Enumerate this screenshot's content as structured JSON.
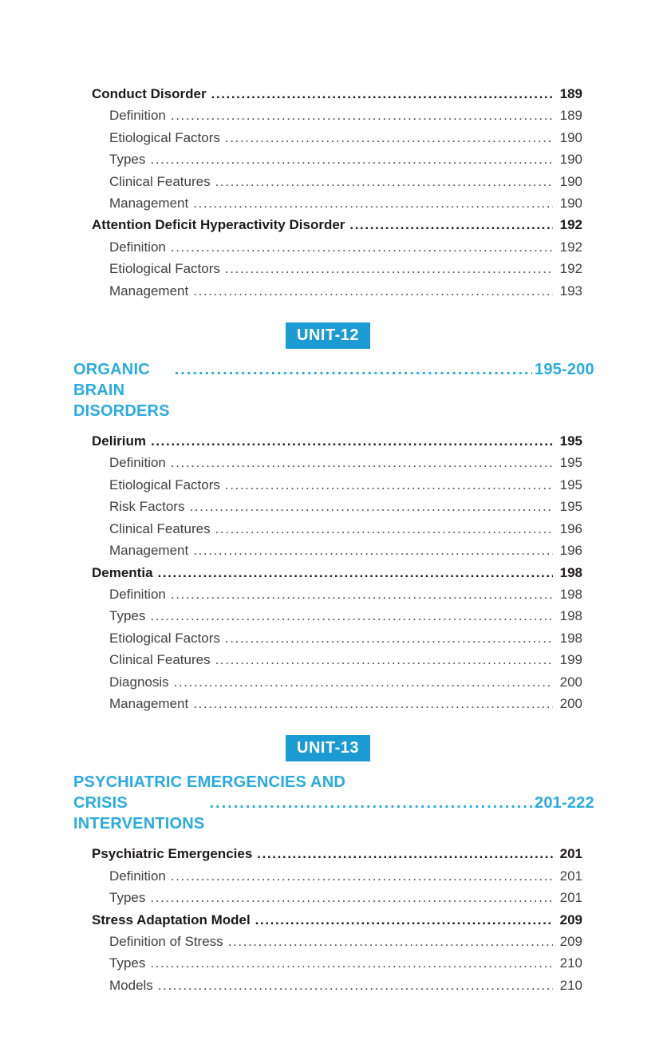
{
  "colors": {
    "badge_bg": "#1b9ad4",
    "heading_blue": "#29abe2",
    "body_text": "#403f41",
    "bold_text": "#1e1a1b"
  },
  "toc": {
    "blocks": [
      {
        "kind": "entries",
        "rows": [
          {
            "level": 1,
            "label": "Conduct Disorder",
            "page": "189"
          },
          {
            "level": 2,
            "label": "Definition",
            "page": "189"
          },
          {
            "level": 2,
            "label": "Etiological Factors",
            "page": "190"
          },
          {
            "level": 2,
            "label": "Types",
            "page": "190"
          },
          {
            "level": 2,
            "label": "Clinical Features",
            "page": "190"
          },
          {
            "level": 2,
            "label": "Management",
            "page": "190"
          },
          {
            "level": 1,
            "label": "Attention Deficit Hyperactivity Disorder",
            "page": "192"
          },
          {
            "level": 2,
            "label": "Definition",
            "page": "192"
          },
          {
            "level": 2,
            "label": "Etiological Factors",
            "page": "192"
          },
          {
            "level": 2,
            "label": "Management",
            "page": "193"
          }
        ]
      },
      {
        "kind": "unit",
        "badge": "UNIT-12",
        "title_lines": [
          "ORGANIC BRAIN DISORDERS"
        ],
        "page_range": "195-200",
        "rows": [
          {
            "level": 1,
            "label": "Delirium",
            "page": "195"
          },
          {
            "level": 2,
            "label": "Definition",
            "page": "195"
          },
          {
            "level": 2,
            "label": "Etiological Factors",
            "page": "195"
          },
          {
            "level": 2,
            "label": "Risk Factors",
            "page": "195"
          },
          {
            "level": 2,
            "label": "Clinical Features",
            "page": "196"
          },
          {
            "level": 2,
            "label": "Management",
            "page": "196"
          },
          {
            "level": 1,
            "label": "Dementia",
            "page": "198"
          },
          {
            "level": 2,
            "label": "Definition",
            "page": "198"
          },
          {
            "level": 2,
            "label": "Types",
            "page": "198"
          },
          {
            "level": 2,
            "label": "Etiological Factors",
            "page": "198"
          },
          {
            "level": 2,
            "label": "Clinical Features",
            "page": "199"
          },
          {
            "level": 2,
            "label": "Diagnosis",
            "page": "200"
          },
          {
            "level": 2,
            "label": "Management",
            "page": "200"
          }
        ]
      },
      {
        "kind": "unit",
        "badge": "UNIT-13",
        "title_lines": [
          "PSYCHIATRIC EMERGENCIES AND",
          "CRISIS INTERVENTIONS"
        ],
        "page_range": "201-222",
        "rows": [
          {
            "level": 1,
            "label": "Psychiatric Emergencies",
            "page": "201"
          },
          {
            "level": 2,
            "label": "Definition",
            "page": "201"
          },
          {
            "level": 2,
            "label": "Types",
            "page": "201"
          },
          {
            "level": 1,
            "label": "Stress Adaptation Model",
            "page": "209"
          },
          {
            "level": 2,
            "label": "Definition of Stress",
            "page": "209"
          },
          {
            "level": 2,
            "label": "Types",
            "page": "210"
          },
          {
            "level": 2,
            "label": "Models",
            "page": "210"
          }
        ]
      }
    ]
  }
}
